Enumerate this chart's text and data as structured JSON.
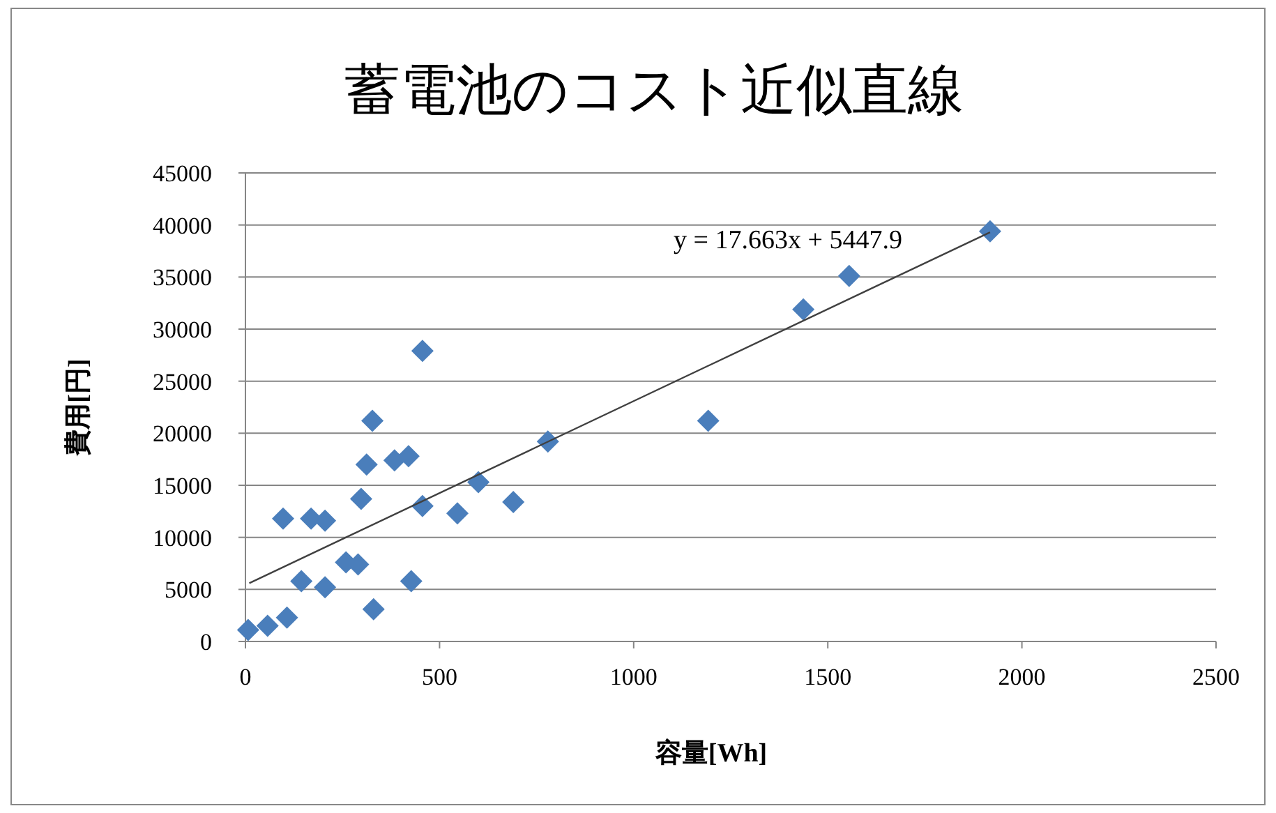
{
  "chart_data": {
    "type": "scatter",
    "title": "蓄電池のコスト近似直線",
    "xlabel": "容量[Wh]",
    "ylabel": "費用[円]",
    "annotations": [
      "y = 17.663x + 5447.9"
    ],
    "series": [
      {
        "color": "#4a7ebb",
        "marker": "diamond",
        "x": [
          7,
          57,
          107,
          97,
          144,
          169,
          205,
          205,
          259,
          290,
          330,
          298,
          312,
          327,
          384,
          420,
          427,
          456,
          456,
          546,
          600,
          690,
          779,
          1192,
          1437,
          1555,
          1918
        ],
        "values": [
          1100,
          1500,
          2300,
          11800,
          5800,
          11800,
          11600,
          5200,
          7600,
          7400,
          3100,
          13700,
          17000,
          21200,
          17400,
          17800,
          5800,
          27900,
          13000,
          12300,
          15300,
          13400,
          19200,
          21200,
          31900,
          35100,
          39400
        ]
      },
      {
        "type": "line",
        "color": "#404040",
        "marker": "none",
        "x": [
          10,
          1918
        ],
        "values": [
          5600,
          39300
        ]
      }
    ],
    "xlim": [
      0,
      2500
    ],
    "xticks": [
      0,
      500,
      1000,
      1500,
      2000,
      2500
    ],
    "ylim": [
      0,
      45000
    ],
    "yticks": [
      0,
      5000,
      10000,
      15000,
      20000,
      25000,
      30000,
      35000,
      40000,
      45000
    ],
    "grid": "y"
  }
}
